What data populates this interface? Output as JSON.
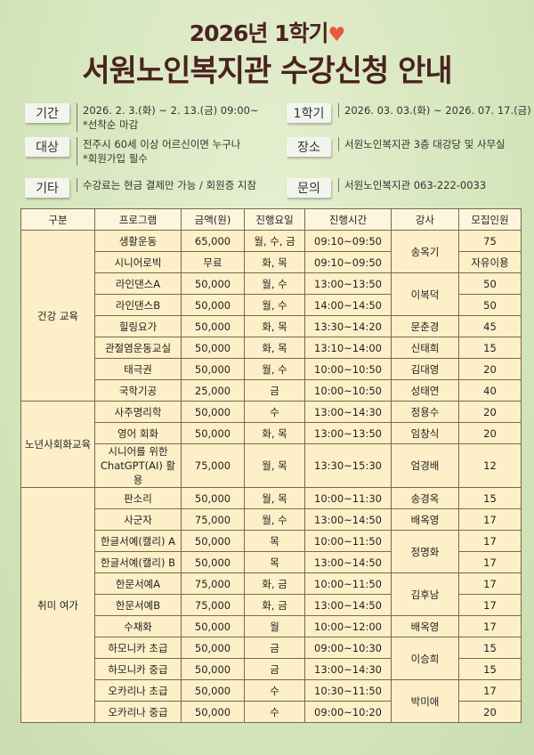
{
  "title": {
    "line1": "2026년 1학기",
    "line2": "서원노인복지관 수강신청 안내",
    "heart": "heart-icon"
  },
  "info": [
    {
      "label": "기간",
      "lines": [
        "2026. 2. 3.(화) ~ 2. 13.(금) 09:00~",
        "*선착순 마감"
      ]
    },
    {
      "label": "1학기",
      "lines": [
        "2026. 03. 03.(화) ~ 2026. 07. 17.(금)"
      ]
    },
    {
      "label": "대상",
      "lines": [
        "전주시 60세 이상 어르신이면 누구나",
        "*회원가입 필수"
      ]
    },
    {
      "label": "장소",
      "lines": [
        "서원노인복지관 3층 대강당 및 사무실"
      ]
    },
    {
      "label": "기타",
      "lines": [
        "수강료는 현금 결제만 가능 / 회원증 지참"
      ]
    },
    {
      "label": "문의",
      "lines": [
        "서원노인복지관 063-222-0033"
      ]
    }
  ],
  "table": {
    "headers": [
      "구분",
      "프로그램",
      "금액(원)",
      "진행요일",
      "진행시간",
      "강사",
      "모집인원"
    ],
    "categories": [
      "건강 교육",
      "노년사회화교육",
      "취미 여가"
    ],
    "rows": [
      [
        "생활운동",
        "65,000",
        "월, 수, 금",
        "09:10~09:50",
        "송옥기",
        "75"
      ],
      [
        "시니어로빅",
        "무료",
        "화, 목",
        "09:10~09:50",
        "",
        "자유이용"
      ],
      [
        "라인댄스A",
        "50,000",
        "월, 수",
        "13:00~13:50",
        "이복덕",
        "50"
      ],
      [
        "라인댄스B",
        "50,000",
        "월, 수",
        "14:00~14:50",
        "",
        "50"
      ],
      [
        "힐링요가",
        "50,000",
        "화, 목",
        "13:30~14:20",
        "문춘경",
        "45"
      ],
      [
        "관절염운동교실",
        "50,000",
        "화, 목",
        "13:10~14:00",
        "신태희",
        "15"
      ],
      [
        "태극권",
        "50,000",
        "월, 수",
        "10:00~10:50",
        "김대영",
        "20"
      ],
      [
        "국학기공",
        "25,000",
        "금",
        "10:00~10:50",
        "성태연",
        "40"
      ],
      [
        "사주명리학",
        "50,000",
        "수",
        "13:00~14:30",
        "정용수",
        "20"
      ],
      [
        "영어 회화",
        "50,000",
        "화, 목",
        "13:00~13:50",
        "임창식",
        "20"
      ],
      [
        "시니어를 위한 ChatGPT(AI) 활용",
        "75,000",
        "월, 목",
        "13:30~15:30",
        "엄경배",
        "12"
      ],
      [
        "판소리",
        "50,000",
        "월, 목",
        "10:00~11:30",
        "송경옥",
        "15"
      ],
      [
        "사군자",
        "75,000",
        "월, 수",
        "13:00~14:50",
        "배옥영",
        "17"
      ],
      [
        "한글서예(캘리) A",
        "50,000",
        "목",
        "10:00~11:50",
        "정명화",
        "17"
      ],
      [
        "한글서예(캘리) B",
        "50,000",
        "목",
        "13:00~14:50",
        "",
        "17"
      ],
      [
        "한문서예A",
        "75,000",
        "화, 금",
        "10:00~11:50",
        "김후남",
        "17"
      ],
      [
        "한문서예B",
        "75,000",
        "화, 금",
        "13:00~14:50",
        "",
        "17"
      ],
      [
        "수채화",
        "50,000",
        "월",
        "10:00~12:00",
        "배옥영",
        "17"
      ],
      [
        "하모니카 초급",
        "50,000",
        "금",
        "09:00~10:30",
        "이승희",
        "15"
      ],
      [
        "하모니카 중급",
        "50,000",
        "금",
        "13:00~14:30",
        "",
        "15"
      ],
      [
        "오카리나 초급",
        "50,000",
        "수",
        "10:30~11:50",
        "박미애",
        "17"
      ],
      [
        "오카리나 중급",
        "50,000",
        "수",
        "09:00~10:20",
        "",
        "20"
      ]
    ]
  },
  "colors": {
    "title": "#4a2320",
    "heart": "#e85a3a",
    "table_bg": "#fdf0c8"
  }
}
